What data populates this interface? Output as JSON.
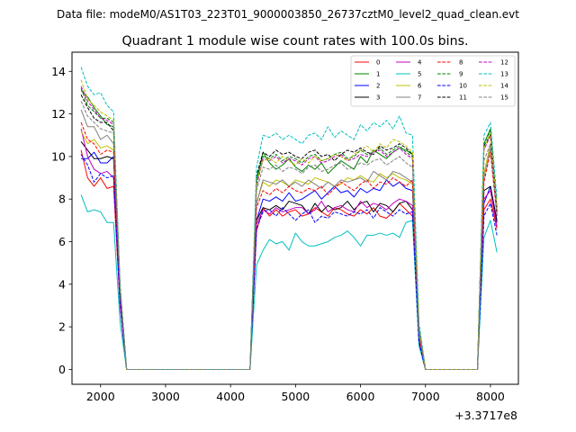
{
  "chart_data": {
    "type": "line",
    "suptitle": "Data file: modeM0/AS1T03_223T01_9000003850_26737cztM0_level2_quad_clean.evt",
    "title": "Quadrant 1 module wise count rates with 100.0s bins.",
    "xlabel": "",
    "ylabel": "",
    "x_offset_label": "+3.3717e8",
    "xlim": [
      1560,
      8430
    ],
    "ylim": [
      -0.7,
      14.9
    ],
    "xticks": [
      2000,
      3000,
      4000,
      5000,
      6000,
      7000,
      8000
    ],
    "xtick_labels": [
      "2000",
      "3000",
      "4000",
      "5000",
      "6000",
      "7000",
      "8000"
    ],
    "yticks": [
      0,
      2,
      4,
      6,
      8,
      10,
      12,
      14
    ],
    "ytick_labels": [
      "0",
      "2",
      "4",
      "6",
      "8",
      "10",
      "12",
      "14"
    ],
    "legend_position": "top-right",
    "x": [
      1700,
      1800,
      1900,
      2000,
      2100,
      2200,
      2300,
      2400,
      2500,
      2600,
      2700,
      2800,
      2900,
      3000,
      3100,
      3200,
      3300,
      3400,
      3500,
      3600,
      3700,
      3800,
      3900,
      4000,
      4100,
      4200,
      4300,
      4400,
      4500,
      4600,
      4700,
      4800,
      4900,
      5000,
      5100,
      5200,
      5300,
      5400,
      5500,
      5600,
      5700,
      5800,
      5900,
      6000,
      6100,
      6200,
      6300,
      6400,
      6500,
      6600,
      6700,
      6800,
      6900,
      7000,
      7100,
      7200,
      7300,
      7400,
      7500,
      7600,
      7700,
      7800,
      7900,
      8000,
      8100
    ],
    "series": [
      {
        "name": "0",
        "color": "#ff0000",
        "dash": "solid",
        "values": [
          10.3,
          9.0,
          8.6,
          9.0,
          8.5,
          8.6,
          3.0,
          0.0,
          0.0,
          0.0,
          0.0,
          0.0,
          0.0,
          0.0,
          0.0,
          0.0,
          0.0,
          0.0,
          0.0,
          0.0,
          0.0,
          0.0,
          0.0,
          0.0,
          0.0,
          0.0,
          0.0,
          6.5,
          7.6,
          7.2,
          7.5,
          7.2,
          7.4,
          7.5,
          7.2,
          7.3,
          7.6,
          7.4,
          7.2,
          7.6,
          7.5,
          7.3,
          7.2,
          7.5,
          7.3,
          7.6,
          7.2,
          7.1,
          7.4,
          7.8,
          7.5,
          7.2,
          1.2,
          0.0,
          0.0,
          0.0,
          0.0,
          0.0,
          0.0,
          0.0,
          0.0,
          0.0,
          7.5,
          8.0,
          6.6
        ]
      },
      {
        "name": "1",
        "color": "#008000",
        "dash": "solid",
        "values": [
          13.1,
          12.8,
          12.3,
          11.9,
          11.5,
          11.4,
          3.8,
          0.0,
          0.0,
          0.0,
          0.0,
          0.0,
          0.0,
          0.0,
          0.0,
          0.0,
          0.0,
          0.0,
          0.0,
          0.0,
          0.0,
          0.0,
          0.0,
          0.0,
          0.0,
          0.0,
          0.0,
          8.8,
          10.2,
          9.7,
          9.4,
          9.6,
          9.9,
          9.5,
          9.3,
          9.6,
          9.4,
          9.7,
          9.2,
          9.5,
          9.8,
          9.6,
          9.4,
          10.0,
          9.7,
          10.3,
          10.1,
          9.9,
          10.2,
          10.4,
          10.3,
          10.1,
          2.0,
          0.0,
          0.0,
          0.0,
          0.0,
          0.0,
          0.0,
          0.0,
          0.0,
          0.0,
          10.6,
          11.3,
          7.5
        ]
      },
      {
        "name": "2",
        "color": "#0000ff",
        "dash": "solid",
        "values": [
          9.9,
          9.9,
          10.2,
          9.7,
          9.7,
          10.0,
          3.4,
          0.0,
          0.0,
          0.0,
          0.0,
          0.0,
          0.0,
          0.0,
          0.0,
          0.0,
          0.0,
          0.0,
          0.0,
          0.0,
          0.0,
          0.0,
          0.0,
          0.0,
          0.0,
          0.0,
          0.0,
          7.0,
          8.0,
          7.9,
          8.1,
          7.9,
          8.3,
          7.9,
          8.0,
          8.2,
          8.4,
          8.0,
          8.3,
          8.6,
          8.3,
          8.4,
          8.1,
          8.5,
          8.3,
          8.5,
          8.4,
          8.9,
          8.6,
          8.8,
          8.5,
          8.4,
          1.5,
          0.0,
          0.0,
          0.0,
          0.0,
          0.0,
          0.0,
          0.0,
          0.0,
          0.0,
          7.8,
          8.6,
          7.0
        ]
      },
      {
        "name": "3",
        "color": "#000000",
        "dash": "solid",
        "values": [
          10.7,
          10.3,
          9.9,
          9.9,
          10.0,
          9.9,
          3.2,
          0.0,
          0.0,
          0.0,
          0.0,
          0.0,
          0.0,
          0.0,
          0.0,
          0.0,
          0.0,
          0.0,
          0.0,
          0.0,
          0.0,
          0.0,
          0.0,
          0.0,
          0.0,
          0.0,
          0.0,
          7.0,
          7.6,
          7.5,
          7.7,
          7.5,
          7.9,
          7.8,
          7.7,
          7.3,
          7.8,
          7.4,
          7.7,
          7.5,
          7.6,
          7.9,
          7.5,
          7.8,
          7.9,
          7.4,
          7.8,
          7.7,
          7.4,
          7.8,
          7.9,
          7.5,
          1.3,
          0.0,
          0.0,
          0.0,
          0.0,
          0.0,
          0.0,
          0.0,
          0.0,
          0.0,
          8.4,
          8.6,
          6.9
        ]
      },
      {
        "name": "4",
        "color": "#c000c0",
        "dash": "solid",
        "values": [
          11.3,
          10.0,
          9.4,
          9.2,
          9.3,
          9.0,
          3.0,
          0.0,
          0.0,
          0.0,
          0.0,
          0.0,
          0.0,
          0.0,
          0.0,
          0.0,
          0.0,
          0.0,
          0.0,
          0.0,
          0.0,
          0.0,
          0.0,
          0.0,
          0.0,
          0.0,
          0.0,
          6.8,
          7.5,
          7.3,
          7.6,
          7.4,
          7.5,
          7.6,
          7.6,
          7.3,
          7.5,
          7.9,
          7.4,
          7.6,
          7.7,
          7.5,
          7.4,
          7.9,
          7.6,
          7.8,
          7.7,
          7.5,
          7.8,
          8.0,
          7.9,
          7.7,
          1.3,
          0.0,
          0.0,
          0.0,
          0.0,
          0.0,
          0.0,
          0.0,
          0.0,
          0.0,
          8.0,
          8.4,
          6.7
        ]
      },
      {
        "name": "5",
        "color": "#00bfbf",
        "dash": "solid",
        "values": [
          8.2,
          7.4,
          7.5,
          7.4,
          6.9,
          6.9,
          2.2,
          0.0,
          0.0,
          0.0,
          0.0,
          0.0,
          0.0,
          0.0,
          0.0,
          0.0,
          0.0,
          0.0,
          0.0,
          0.0,
          0.0,
          0.0,
          0.0,
          0.0,
          0.0,
          0.0,
          0.0,
          4.9,
          5.6,
          6.1,
          5.9,
          6.0,
          5.6,
          6.4,
          6.0,
          5.8,
          5.8,
          5.9,
          6.0,
          6.2,
          6.3,
          6.5,
          6.2,
          5.8,
          6.3,
          6.3,
          6.4,
          6.3,
          6.4,
          6.2,
          6.9,
          7.0,
          1.1,
          0.0,
          0.0,
          0.0,
          0.0,
          0.0,
          0.0,
          0.0,
          0.0,
          0.0,
          6.2,
          7.0,
          5.5
        ]
      },
      {
        "name": "6",
        "color": "#bfbf00",
        "dash": "solid",
        "values": [
          11.2,
          10.6,
          10.8,
          10.4,
          10.5,
          10.3,
          3.5,
          0.0,
          0.0,
          0.0,
          0.0,
          0.0,
          0.0,
          0.0,
          0.0,
          0.0,
          0.0,
          0.0,
          0.0,
          0.0,
          0.0,
          0.0,
          0.0,
          0.0,
          0.0,
          0.0,
          0.0,
          7.8,
          8.8,
          8.6,
          8.9,
          8.8,
          8.6,
          8.9,
          8.8,
          8.7,
          9.0,
          8.9,
          8.8,
          8.6,
          8.7,
          9.0,
          8.9,
          9.1,
          8.9,
          8.8,
          9.2,
          9.0,
          9.2,
          9.0,
          8.9,
          8.7,
          1.6,
          0.0,
          0.0,
          0.0,
          0.0,
          0.0,
          0.0,
          0.0,
          0.0,
          0.0,
          9.2,
          10.6,
          7.6
        ]
      },
      {
        "name": "7",
        "color": "#808080",
        "dash": "solid",
        "values": [
          12.2,
          11.4,
          11.4,
          10.8,
          11.0,
          10.6,
          3.6,
          0.0,
          0.0,
          0.0,
          0.0,
          0.0,
          0.0,
          0.0,
          0.0,
          0.0,
          0.0,
          0.0,
          0.0,
          0.0,
          0.0,
          0.0,
          0.0,
          0.0,
          0.0,
          0.0,
          0.0,
          7.8,
          8.9,
          8.8,
          8.7,
          8.9,
          8.6,
          8.8,
          8.6,
          8.9,
          8.7,
          8.5,
          8.8,
          8.6,
          8.9,
          8.8,
          8.9,
          9.0,
          8.8,
          9.3,
          9.1,
          8.9,
          9.3,
          9.2,
          9.0,
          8.8,
          1.6,
          0.0,
          0.0,
          0.0,
          0.0,
          0.0,
          0.0,
          0.0,
          0.0,
          0.0,
          9.0,
          10.4,
          7.3
        ]
      },
      {
        "name": "8",
        "color": "#ff0000",
        "dash": "dashed",
        "values": [
          11.6,
          10.8,
          10.6,
          10.1,
          10.3,
          10.2,
          3.5,
          0.0,
          0.0,
          0.0,
          0.0,
          0.0,
          0.0,
          0.0,
          0.0,
          0.0,
          0.0,
          0.0,
          0.0,
          0.0,
          0.0,
          0.0,
          0.0,
          0.0,
          0.0,
          0.0,
          0.0,
          7.6,
          8.4,
          8.2,
          8.5,
          8.3,
          8.6,
          8.4,
          8.3,
          8.5,
          8.4,
          8.6,
          8.2,
          8.5,
          8.8,
          8.6,
          8.4,
          8.7,
          8.9,
          8.5,
          8.8,
          8.7,
          9.0,
          8.8,
          8.6,
          8.9,
          1.5,
          0.0,
          0.0,
          0.0,
          0.0,
          0.0,
          0.0,
          0.0,
          0.0,
          0.0,
          8.8,
          10.2,
          7.2
        ]
      },
      {
        "name": "9",
        "color": "#008000",
        "dash": "dashed",
        "values": [
          13.2,
          12.4,
          12.1,
          11.8,
          11.8,
          11.6,
          3.9,
          0.0,
          0.0,
          0.0,
          0.0,
          0.0,
          0.0,
          0.0,
          0.0,
          0.0,
          0.0,
          0.0,
          0.0,
          0.0,
          0.0,
          0.0,
          0.0,
          0.0,
          0.0,
          0.0,
          0.0,
          9.0,
          10.0,
          9.9,
          10.1,
          9.8,
          10.0,
          9.9,
          9.7,
          10.0,
          10.1,
          9.8,
          9.9,
          10.1,
          10.2,
          9.9,
          10.0,
          10.3,
          10.1,
          10.2,
          10.4,
          10.1,
          10.3,
          10.5,
          10.2,
          10.0,
          2.0,
          0.0,
          0.0,
          0.0,
          0.0,
          0.0,
          0.0,
          0.0,
          0.0,
          0.0,
          10.6,
          11.2,
          7.6
        ]
      },
      {
        "name": "10",
        "color": "#0000ff",
        "dash": "dashed",
        "values": [
          10.1,
          9.6,
          8.8,
          9.2,
          9.0,
          9.1,
          3.1,
          0.0,
          0.0,
          0.0,
          0.0,
          0.0,
          0.0,
          0.0,
          0.0,
          0.0,
          0.0,
          0.0,
          0.0,
          0.0,
          0.0,
          0.0,
          0.0,
          0.0,
          0.0,
          0.0,
          0.0,
          6.6,
          7.4,
          7.5,
          7.2,
          7.6,
          7.3,
          7.0,
          7.3,
          7.5,
          6.9,
          7.2,
          7.1,
          7.4,
          7.3,
          7.2,
          7.4,
          7.3,
          7.5,
          7.1,
          7.6,
          7.4,
          7.2,
          7.5,
          7.3,
          7.4,
          1.3,
          0.0,
          0.0,
          0.0,
          0.0,
          0.0,
          0.0,
          0.0,
          0.0,
          0.0,
          7.2,
          7.8,
          6.3
        ]
      },
      {
        "name": "11",
        "color": "#000000",
        "dash": "dashed",
        "values": [
          12.9,
          12.3,
          11.8,
          11.6,
          11.6,
          11.2,
          3.9,
          0.0,
          0.0,
          0.0,
          0.0,
          0.0,
          0.0,
          0.0,
          0.0,
          0.0,
          0.0,
          0.0,
          0.0,
          0.0,
          0.0,
          0.0,
          0.0,
          0.0,
          0.0,
          0.0,
          0.0,
          9.1,
          10.2,
          10.0,
          10.3,
          10.1,
          10.2,
          10.0,
          9.9,
          10.2,
          10.3,
          10.0,
          10.1,
          9.8,
          10.1,
          10.3,
          10.2,
          10.4,
          10.2,
          10.1,
          10.5,
          10.3,
          10.4,
          10.6,
          10.4,
          10.1,
          2.0,
          0.0,
          0.0,
          0.0,
          0.0,
          0.0,
          0.0,
          0.0,
          0.0,
          0.0,
          10.5,
          11.0,
          7.4
        ]
      },
      {
        "name": "12",
        "color": "#c000c0",
        "dash": "dashed",
        "values": [
          13.3,
          12.6,
          12.2,
          11.8,
          11.7,
          11.5,
          3.9,
          0.0,
          0.0,
          0.0,
          0.0,
          0.0,
          0.0,
          0.0,
          0.0,
          0.0,
          0.0,
          0.0,
          0.0,
          0.0,
          0.0,
          0.0,
          0.0,
          0.0,
          0.0,
          0.0,
          0.0,
          8.6,
          9.9,
          9.8,
          10.0,
          9.7,
          9.9,
          9.8,
          9.6,
          9.9,
          10.0,
          9.7,
          9.8,
          10.0,
          10.1,
          9.8,
          9.9,
          10.1,
          10.0,
          10.2,
          10.3,
          10.0,
          10.2,
          10.4,
          10.1,
          9.9,
          1.9,
          0.0,
          0.0,
          0.0,
          0.0,
          0.0,
          0.0,
          0.0,
          0.0,
          0.0,
          10.3,
          11.0,
          7.5
        ]
      },
      {
        "name": "13",
        "color": "#00bfbf",
        "dash": "dashed",
        "values": [
          14.2,
          13.3,
          12.9,
          13.0,
          12.4,
          12.1,
          4.0,
          0.0,
          0.0,
          0.0,
          0.0,
          0.0,
          0.0,
          0.0,
          0.0,
          0.0,
          0.0,
          0.0,
          0.0,
          0.0,
          0.0,
          0.0,
          0.0,
          0.0,
          0.0,
          0.0,
          0.0,
          9.5,
          11.0,
          10.9,
          11.1,
          10.8,
          11.0,
          10.8,
          10.6,
          11.0,
          11.1,
          10.8,
          11.4,
          10.9,
          11.2,
          11.0,
          10.8,
          11.5,
          11.2,
          11.6,
          11.4,
          11.7,
          11.3,
          11.9,
          11.1,
          11.0,
          2.2,
          0.0,
          0.0,
          0.0,
          0.0,
          0.0,
          0.0,
          0.0,
          0.0,
          0.0,
          11.0,
          11.6,
          8.0
        ]
      },
      {
        "name": "14",
        "color": "#bfbf00",
        "dash": "dashed",
        "values": [
          13.6,
          12.7,
          12.4,
          12.1,
          11.9,
          11.7,
          3.9,
          0.0,
          0.0,
          0.0,
          0.0,
          0.0,
          0.0,
          0.0,
          0.0,
          0.0,
          0.0,
          0.0,
          0.0,
          0.0,
          0.0,
          0.0,
          0.0,
          0.0,
          0.0,
          0.0,
          0.0,
          8.8,
          9.8,
          9.9,
          9.7,
          10.0,
          9.8,
          9.6,
          9.9,
          9.7,
          10.0,
          9.8,
          9.9,
          10.1,
          10.0,
          9.8,
          10.1,
          10.3,
          10.5,
          10.2,
          10.6,
          10.4,
          10.8,
          10.7,
          10.5,
          10.2,
          1.9,
          0.0,
          0.0,
          0.0,
          0.0,
          0.0,
          0.0,
          0.0,
          0.0,
          0.0,
          10.4,
          11.1,
          7.5
        ]
      },
      {
        "name": "15",
        "color": "#808080",
        "dash": "dashed",
        "values": [
          12.6,
          11.9,
          11.6,
          11.3,
          11.2,
          11.1,
          3.7,
          0.0,
          0.0,
          0.0,
          0.0,
          0.0,
          0.0,
          0.0,
          0.0,
          0.0,
          0.0,
          0.0,
          0.0,
          0.0,
          0.0,
          0.0,
          0.0,
          0.0,
          0.0,
          0.0,
          0.0,
          8.4,
          9.5,
          9.4,
          9.6,
          9.3,
          9.5,
          9.4,
          9.2,
          9.5,
          9.6,
          9.3,
          9.4,
          9.6,
          9.7,
          9.4,
          9.5,
          9.7,
          9.6,
          9.8,
          9.9,
          9.6,
          9.8,
          10.0,
          9.7,
          9.5,
          1.8,
          0.0,
          0.0,
          0.0,
          0.0,
          0.0,
          0.0,
          0.0,
          0.0,
          0.0,
          9.8,
          10.6,
          7.2
        ]
      }
    ]
  }
}
